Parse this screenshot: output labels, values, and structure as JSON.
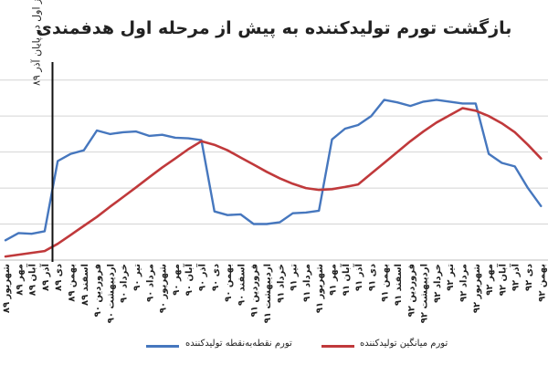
{
  "chart_data": {
    "type": "line",
    "title": "بازگشت تورم تولیدکننده به پیش از مرحله اول هدفمندی",
    "categories": [
      "شهریور ۸۹",
      "مهر ۸۹",
      "آبان ۸۹",
      "آذر ۸۹",
      "دی ۸۹",
      "بهمن ۸۹",
      "اسفند ۸۹",
      "فروردین ۹۰",
      "اردیبهشت ۹۰",
      "خرداد ۹۰",
      "تیر ۹۰",
      "مرداد ۹۰",
      "شهریور ۹۰",
      "مهر ۹۰",
      "آبان ۹۰",
      "آذر ۹۰",
      "دی ۹۰",
      "بهمن ۹۰",
      "اسفند ۹۰",
      "فروردین ۹۱",
      "اردیبهشت ۹۱",
      "خرداد ۹۱",
      "تیر ۹۱",
      "مرداد ۹۱",
      "شهریور ۹۱",
      "مهر ۹۱",
      "آبان ۹۱",
      "آذر ۹۱",
      "دی ۹۱",
      "بهمن ۹۱",
      "اسفند ۹۱",
      "فروردین ۹۲",
      "اردیبهشت ۹۲",
      "خرداد ۹۲",
      "تیر ۹۲",
      "مرداد ۹۲",
      "شهریور ۹۲",
      "مهر ۹۲",
      "آبان ۹۲",
      "آذر ۹۲",
      "دی ۹۲",
      "بهمن ۹۲"
    ],
    "ylim": [
      0,
      5.5
    ],
    "grid": true,
    "legend_position": "bottom",
    "series": [
      {
        "name": "تورم نقطه‌به‌نقطه تولیدکننده",
        "color": "#4677be",
        "values": [
          0.55,
          0.75,
          0.73,
          0.8,
          2.75,
          2.95,
          3.05,
          3.6,
          3.5,
          3.55,
          3.57,
          3.45,
          3.48,
          3.4,
          3.38,
          3.33,
          1.35,
          1.25,
          1.27,
          1.0,
          1.0,
          1.05,
          1.3,
          1.32,
          1.37,
          3.35,
          3.65,
          3.75,
          4.0,
          4.45,
          4.38,
          4.28,
          4.4,
          4.45,
          4.4,
          4.35,
          4.35,
          2.95,
          2.7,
          2.6,
          2.0,
          1.5
        ]
      },
      {
        "name": "تورم میانگین تولیدکننده",
        "color": "#c0393b",
        "values": [
          0.1,
          0.15,
          0.2,
          0.25,
          0.45,
          0.7,
          0.95,
          1.2,
          1.48,
          1.75,
          2.02,
          2.3,
          2.57,
          2.82,
          3.08,
          3.3,
          3.2,
          3.05,
          2.85,
          2.65,
          2.45,
          2.27,
          2.12,
          2.0,
          1.95,
          1.97,
          2.03,
          2.1,
          2.4,
          2.7,
          3.0,
          3.3,
          3.57,
          3.82,
          4.02,
          4.22,
          4.15,
          4.0,
          3.8,
          3.55,
          3.2,
          2.82
        ]
      }
    ],
    "annotations": [
      {
        "text": "اجرای فاز اول در پایان آذر ۸۹",
        "after_category": "آذر ۸۹"
      }
    ]
  },
  "legend": {
    "blue_label": "تورم نقطه‌به‌نقطه تولیدکننده",
    "red_label": "تورم میانگین تولیدکننده"
  }
}
